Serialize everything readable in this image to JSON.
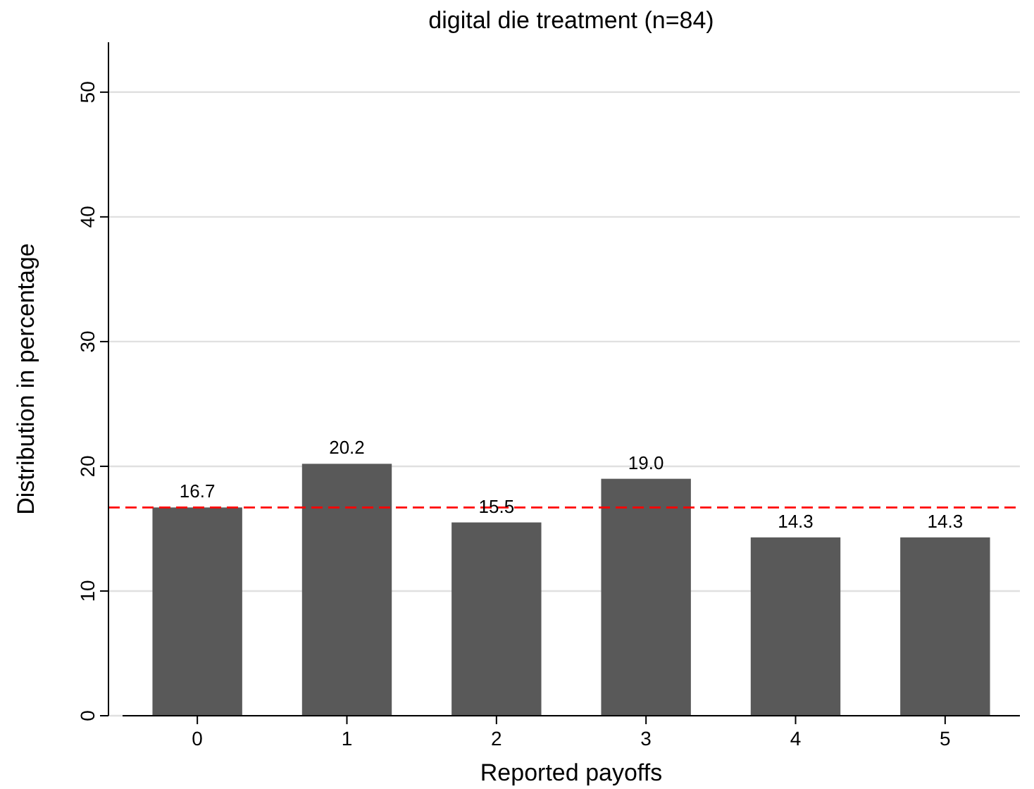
{
  "chart_data": {
    "type": "bar",
    "title": "digital die treatment (n=84)",
    "xlabel": "Reported payoffs",
    "ylabel": "Distribution in percentage",
    "categories": [
      "0",
      "1",
      "2",
      "3",
      "4",
      "5"
    ],
    "values": [
      16.7,
      20.2,
      15.5,
      19.0,
      14.3,
      14.3
    ],
    "value_labels": [
      "16.7",
      "20.2",
      "15.5",
      "19.0",
      "14.3",
      "14.3"
    ],
    "color": "#595959",
    "ylim": [
      0,
      54
    ],
    "yticks": [
      0,
      10,
      20,
      30,
      40,
      50
    ],
    "grid": "y",
    "ref_lines": [
      {
        "axis": "y",
        "value": 16.7,
        "color": "#ff0000",
        "line_style": "dashed"
      }
    ]
  }
}
